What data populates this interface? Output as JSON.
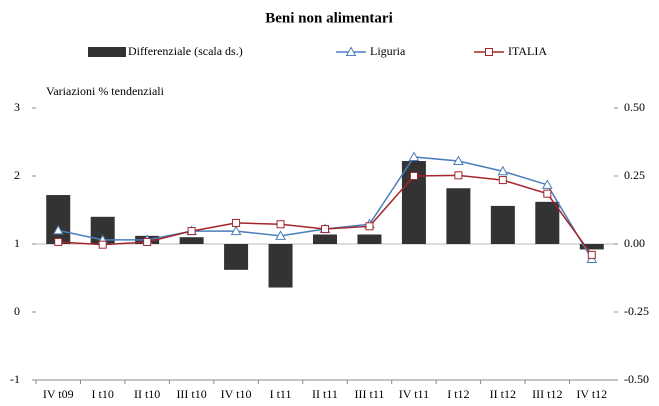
{
  "chart_data": {
    "type": "bar-line",
    "title": "Beni non alimentari",
    "annotation": "Variazioni % tendenziali",
    "categories": [
      "IV t09",
      "I t10",
      "II t10",
      "III t10",
      "IV t10",
      "I t11",
      "II t11",
      "III t11",
      "IV t11",
      "I t12",
      "II t12",
      "III t12",
      "IV t12"
    ],
    "series": [
      {
        "name": "Differenziale (scala ds.)",
        "type": "bar",
        "axis": "y2",
        "color": "#333333",
        "values": [
          0.18,
          0.1,
          0.03,
          0.025,
          -0.095,
          -0.16,
          0.035,
          0.035,
          0.305,
          0.205,
          0.14,
          0.155,
          -0.02
        ]
      },
      {
        "name": "Liguria",
        "type": "line",
        "marker": "triangle",
        "color": "#4a7ebb",
        "values": [
          1.2,
          1.06,
          1.06,
          1.19,
          1.19,
          1.12,
          1.22,
          1.29,
          2.28,
          2.22,
          2.07,
          1.87,
          0.78
        ]
      },
      {
        "name": "ITALIA",
        "type": "line",
        "marker": "square",
        "color": "#a4262c",
        "values": [
          1.03,
          0.99,
          1.03,
          1.19,
          1.31,
          1.29,
          1.22,
          1.26,
          2.0,
          2.01,
          1.94,
          1.74,
          0.84
        ]
      }
    ],
    "ylim": [
      -1,
      3
    ],
    "yticks": [
      -1,
      0,
      1,
      2,
      3
    ],
    "y2lim": [
      -0.5,
      0.5
    ],
    "y2ticks": [
      {
        "value": -0.5,
        "label": "-0.50"
      },
      {
        "value": -0.25,
        "label": "-0.25"
      },
      {
        "value": 0,
        "label": "0.00"
      },
      {
        "value": 0.25,
        "label": "0.25"
      },
      {
        "value": 0.5,
        "label": "0.50"
      }
    ],
    "legend": "top"
  }
}
